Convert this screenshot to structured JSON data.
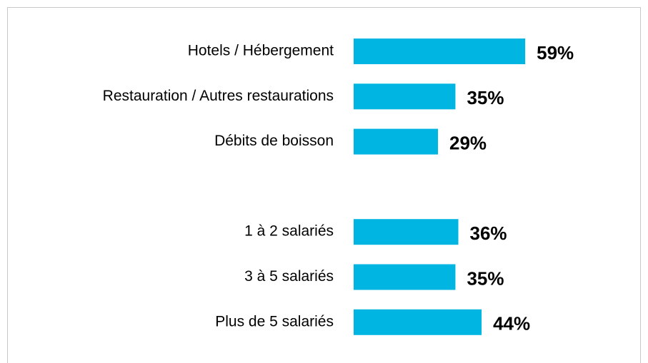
{
  "chart_data": {
    "type": "hbar",
    "categories": [
      "Hotels / Hébergement",
      "Restauration / Autres restaurations",
      "Débits de boisson",
      null,
      "1 à 2 salariés",
      "3 à 5 salariés",
      "Plus de 5 salariés"
    ],
    "values": [
      59,
      35,
      29,
      null,
      36,
      35,
      44
    ],
    "value_labels": [
      "59%",
      "35%",
      "29%",
      null,
      "36%",
      "35%",
      "44%"
    ],
    "color": "#00b5e2"
  }
}
